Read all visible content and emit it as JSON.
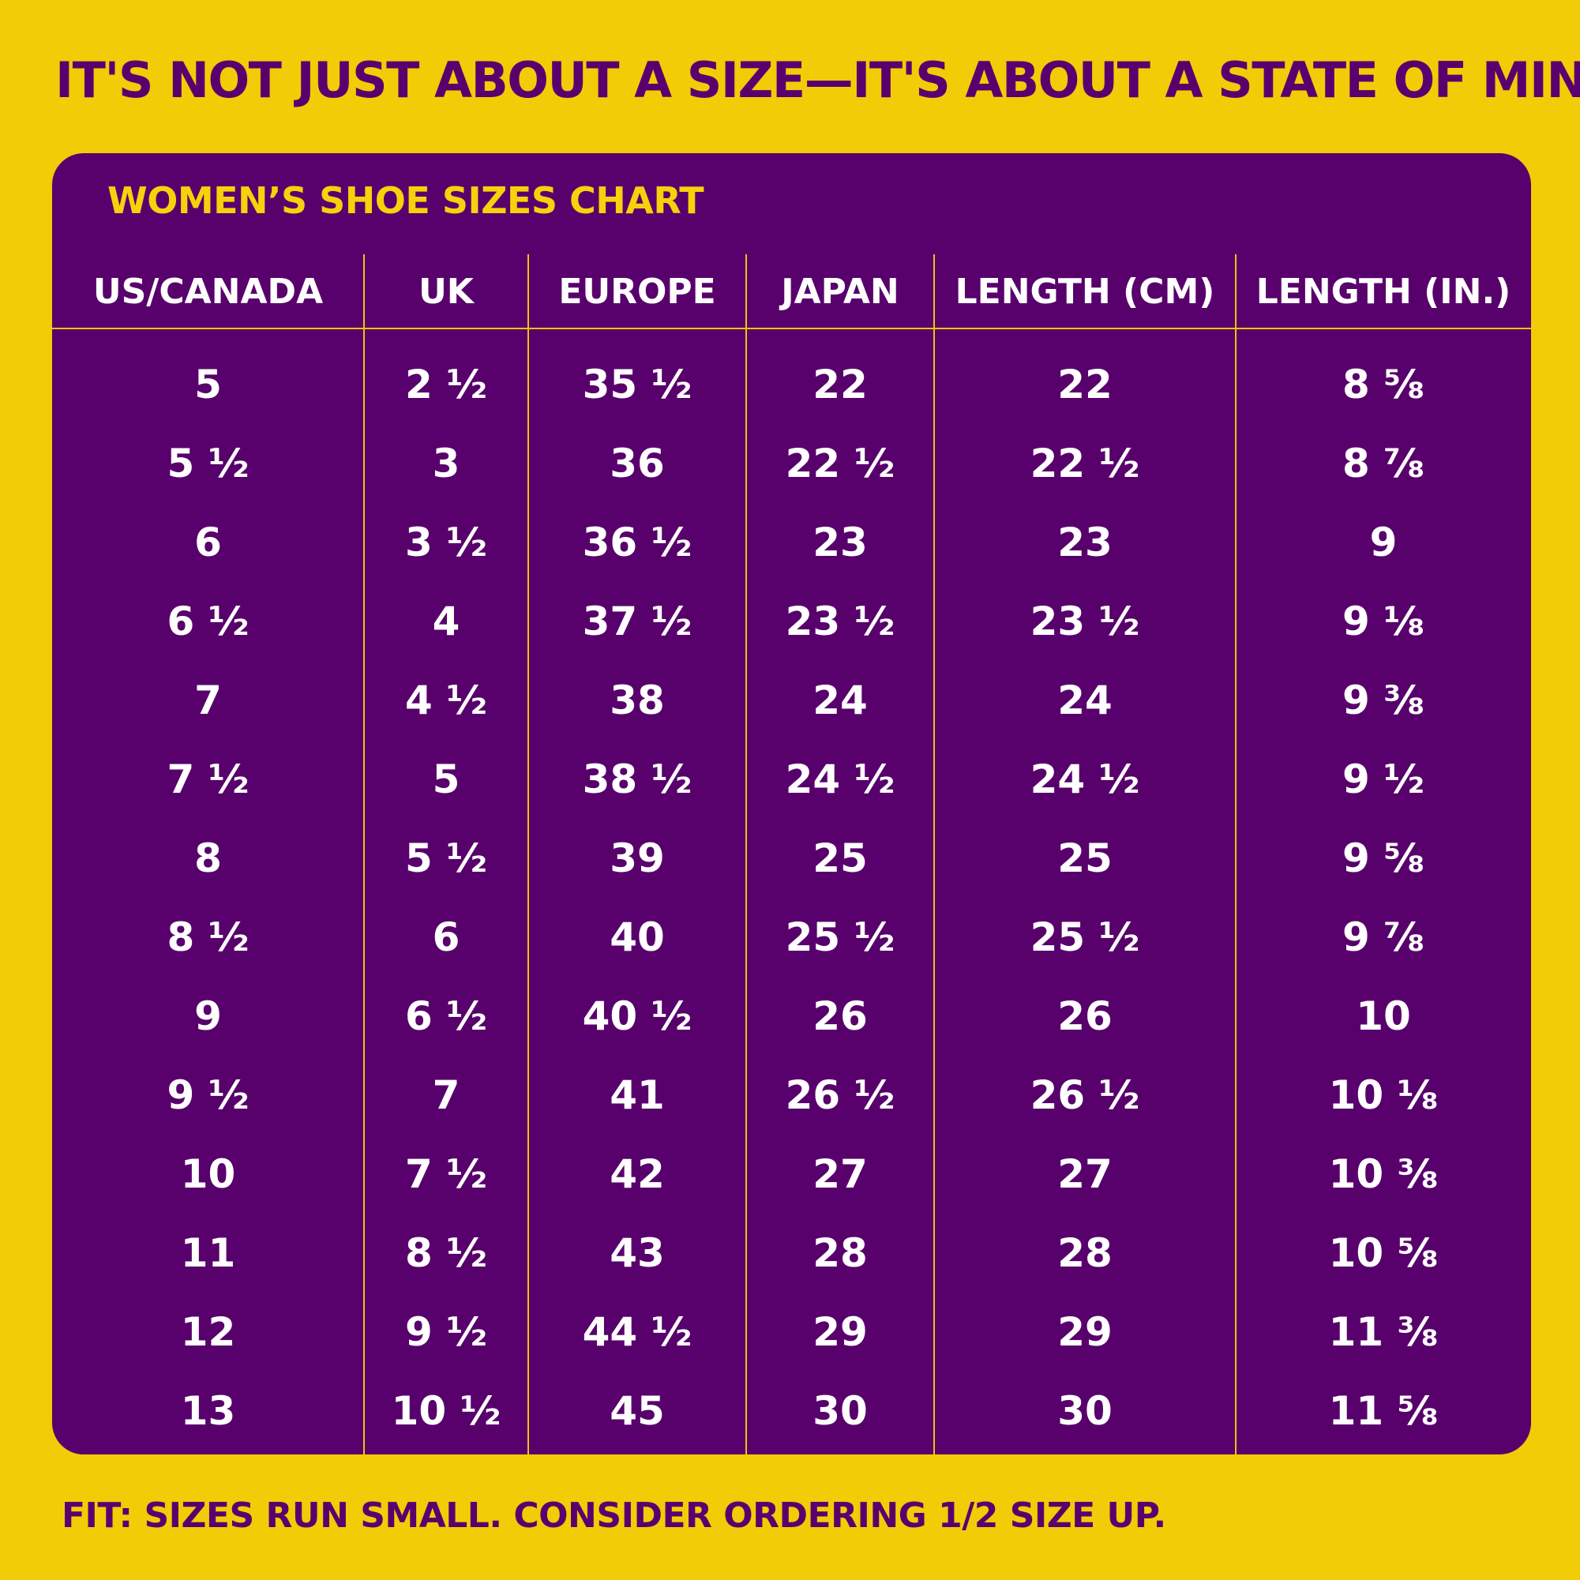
{
  "headline": "IT'S NOT JUST ABOUT A SIZE—IT'S ABOUT A STATE OF MIND!",
  "chart_title": "WOMEN’S SHOE SIZES CHART",
  "columns": [
    "US/CANADA",
    "UK",
    "EUROPE",
    "JAPAN",
    "LENGTH (CM)",
    "LENGTH (IN.)"
  ],
  "rows": [
    [
      "5",
      "2 ½",
      "35 ½",
      "22",
      "22",
      "8 ⅝"
    ],
    [
      "5 ½",
      "3",
      "36",
      "22 ½",
      "22 ½",
      "8 ⅞"
    ],
    [
      "6",
      "3 ½",
      "36 ½",
      "23",
      "23",
      "9"
    ],
    [
      "6 ½",
      "4",
      "37 ½",
      "23 ½",
      "23 ½",
      "9 ⅛"
    ],
    [
      "7",
      "4 ½",
      "38",
      "24",
      "24",
      "9 ⅜"
    ],
    [
      "7 ½",
      "5",
      "38 ½",
      "24 ½",
      "24 ½",
      "9 ½"
    ],
    [
      "8",
      "5 ½",
      "39",
      "25",
      "25",
      "9 ⅝"
    ],
    [
      "8 ½",
      "6",
      "40",
      "25 ½",
      "25 ½",
      "9 ⅞"
    ],
    [
      "9",
      "6 ½",
      "40 ½",
      "26",
      "26",
      "10"
    ],
    [
      "9 ½",
      "7",
      "41",
      "26 ½",
      "26 ½",
      "10 ⅛"
    ],
    [
      "10",
      "7 ½",
      "42",
      "27",
      "27",
      "10 ⅜"
    ],
    [
      "11",
      "8 ½",
      "43",
      "28",
      "28",
      "10 ⅝"
    ],
    [
      "12",
      "9 ½",
      "44 ½",
      "29",
      "29",
      "11 ⅜"
    ],
    [
      "13",
      "10 ½",
      "45",
      "30",
      "30",
      "11 ⅝"
    ]
  ],
  "fit_note": "FIT: SIZES RUN SMALL. CONSIDER ORDERING 1/2 SIZE UP.",
  "colors": {
    "background": "#f2cc07",
    "panel": "#58006c",
    "accent": "#f6d10c",
    "headline": "#5a006e"
  }
}
